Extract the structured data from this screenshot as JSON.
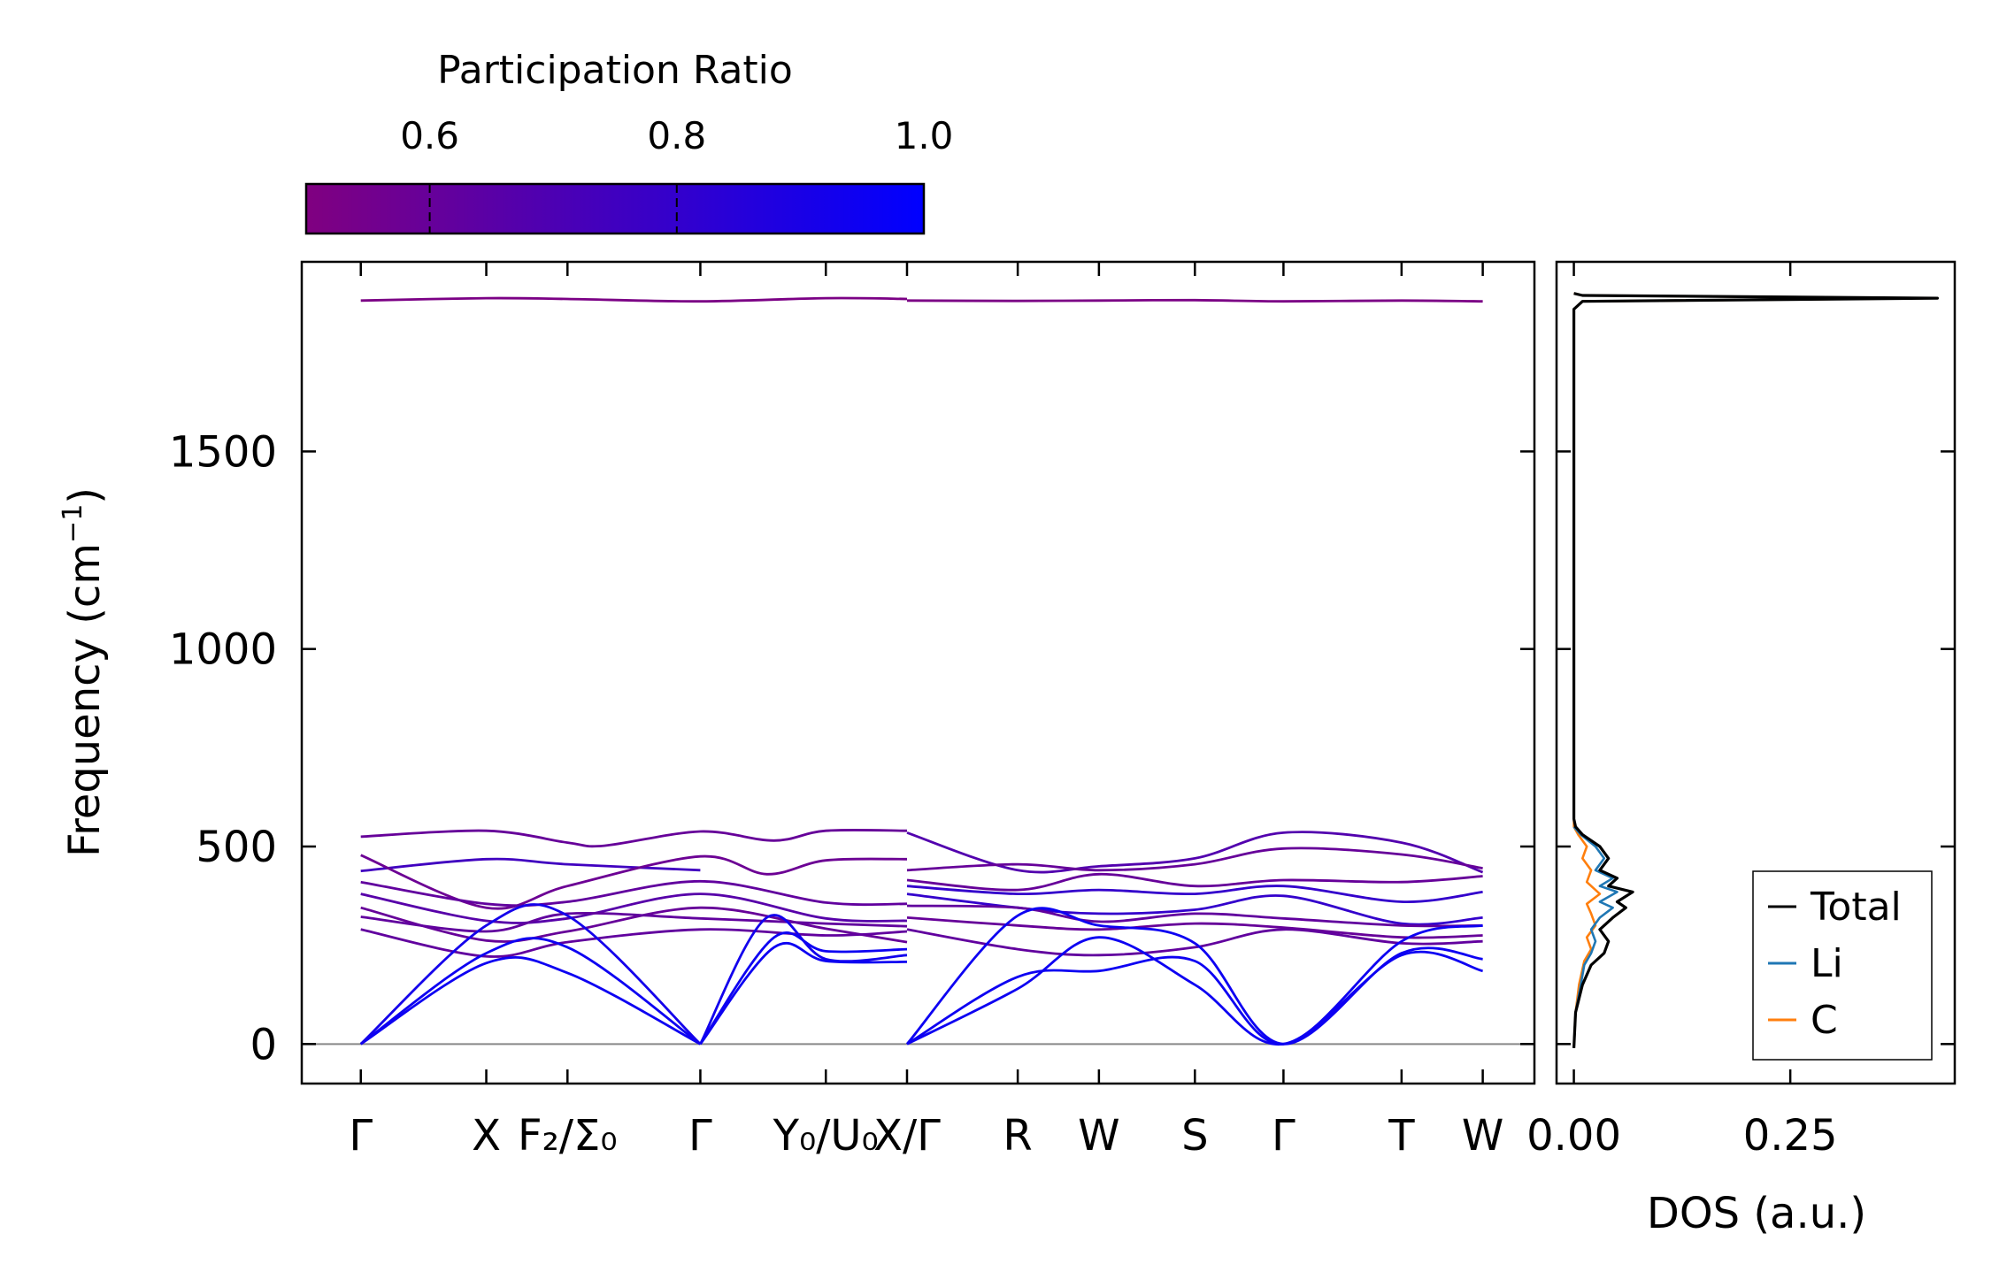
{
  "chart_data": [
    {
      "type": "line",
      "title": "",
      "xlabel": "",
      "ylabel": "Frequency (cm⁻¹)",
      "ylabel_main": "Frequency (cm",
      "ylabel_sup": "−1",
      "ylabel_close": ")",
      "ylim": [
        -100,
        1980
      ],
      "yticks": [
        0,
        500,
        1000,
        1500
      ],
      "ytick_labels": [
        "0",
        "500",
        "1000",
        "1500"
      ],
      "colorbar": {
        "label": "Participation Ratio",
        "range": [
          0.5,
          1.0
        ],
        "ticks": [
          0.6,
          0.8,
          1.0
        ],
        "tick_labels": [
          "0.6",
          "0.8",
          "1.0"
        ],
        "color_low": "#800080",
        "color_high": "#0000ff"
      },
      "kpath": {
        "ticks": [
          {
            "label": "Γ",
            "x": 0.0
          },
          {
            "label": "X",
            "x": 0.85
          },
          {
            "label": "F₂/Σ₀",
            "x": 1.4
          },
          {
            "label": "Γ",
            "x": 2.3
          },
          {
            "label": "Y₀/U₀",
            "x": 3.15
          },
          {
            "label": "X/Γ",
            "x": 3.7
          },
          {
            "label": "R",
            "x": 4.45
          },
          {
            "label": "W",
            "x": 5.0
          },
          {
            "label": "S",
            "x": 5.65
          },
          {
            "label": "Γ",
            "x": 6.25
          },
          {
            "label": "T",
            "x": 7.05
          },
          {
            "label": "W",
            "x": 7.6
          }
        ],
        "xlim": [
          -0.4,
          7.95
        ],
        "ymin_line": 0
      },
      "bands": [
        {
          "x": [
            0,
            0.85,
            1.4,
            2.3,
            3.15,
            3.7
          ],
          "y": [
            1882,
            1888,
            1886,
            1880,
            1888,
            1886
          ],
          "pr": 0.52
        },
        {
          "x": [
            3.7,
            4.45,
            5.0,
            5.65,
            6.25,
            7.05,
            7.6
          ],
          "y": [
            1882,
            1881,
            1882,
            1883,
            1880,
            1882,
            1880
          ],
          "pr": 0.52
        },
        {
          "x": [
            0,
            0.85,
            1.4,
            1.65,
            2.3,
            2.8,
            3.15,
            3.7
          ],
          "y": [
            525,
            540,
            510,
            502,
            538,
            515,
            540,
            540
          ],
          "pr": 0.6
        },
        {
          "x": [
            0,
            0.85,
            1.4,
            2.3
          ],
          "y": [
            438,
            468,
            455,
            440
          ],
          "pr": 0.75
        },
        {
          "x": [
            0,
            0.85,
            1.4,
            2.3,
            2.75,
            3.15,
            3.7
          ],
          "y": [
            478,
            345,
            400,
            475,
            430,
            465,
            468
          ],
          "pr": 0.58
        },
        {
          "x": [
            0,
            0.85,
            1.4,
            2.3,
            3.15,
            3.7
          ],
          "y": [
            410,
            355,
            360,
            412,
            358,
            355
          ],
          "pr": 0.62
        },
        {
          "x": [
            0,
            0.85,
            1.4,
            2.3,
            3.15,
            3.7
          ],
          "y": [
            380,
            312,
            318,
            380,
            318,
            312
          ],
          "pr": 0.66
        },
        {
          "x": [
            0,
            0.85,
            1.4,
            2.3,
            3.15,
            3.7
          ],
          "y": [
            345,
            262,
            285,
            345,
            292,
            258
          ],
          "pr": 0.6
        },
        {
          "x": [
            0,
            0.85,
            1.4,
            2.3,
            3.15,
            3.7
          ],
          "y": [
            322,
            285,
            330,
            318,
            305,
            298
          ],
          "pr": 0.62
        },
        {
          "x": [
            0,
            0.85,
            1.4,
            2.3,
            3.15,
            3.7
          ],
          "y": [
            290,
            222,
            258,
            290,
            275,
            285
          ],
          "pr": 0.62
        },
        {
          "x": [
            0,
            0.85,
            1.4,
            2.3
          ],
          "y": [
            0,
            205,
            180,
            0
          ],
          "pr": 0.95
        },
        {
          "x": [
            0,
            0.85,
            1.4,
            2.3
          ],
          "y": [
            0,
            230,
            245,
            0
          ],
          "pr": 0.95
        },
        {
          "x": [
            0,
            0.85,
            1.4,
            2.3
          ],
          "y": [
            0,
            300,
            325,
            0
          ],
          "pr": 0.92
        },
        {
          "x": [
            2.3,
            2.75,
            3.15,
            3.7
          ],
          "y": [
            0,
            320,
            215,
            225
          ],
          "pr": 0.93
        },
        {
          "x": [
            2.3,
            2.8,
            3.15,
            3.7
          ],
          "y": [
            0,
            245,
            210,
            208
          ],
          "pr": 0.95
        },
        {
          "x": [
            2.3,
            2.8,
            3.15,
            3.7
          ],
          "y": [
            0,
            270,
            235,
            240
          ],
          "pr": 0.95
        },
        {
          "x": [
            3.7,
            4.45,
            5.0,
            5.65,
            6.25,
            7.05,
            7.6
          ],
          "y": [
            535,
            440,
            450,
            470,
            535,
            510,
            435
          ],
          "pr": 0.68
        },
        {
          "x": [
            3.7,
            4.45,
            5.0,
            5.65,
            6.25,
            7.05,
            7.6
          ],
          "y": [
            440,
            455,
            440,
            455,
            495,
            480,
            445
          ],
          "pr": 0.6
        },
        {
          "x": [
            3.7,
            4.45,
            5.0,
            5.65,
            6.25,
            7.05,
            7.6
          ],
          "y": [
            415,
            390,
            430,
            400,
            415,
            410,
            425
          ],
          "pr": 0.6
        },
        {
          "x": [
            3.7,
            4.45,
            5.0,
            5.65,
            6.25,
            7.05,
            7.6
          ],
          "y": [
            400,
            380,
            390,
            380,
            400,
            360,
            385
          ],
          "pr": 0.8
        },
        {
          "x": [
            3.7,
            4.45,
            5.0,
            5.65,
            6.25,
            7.05,
            7.6
          ],
          "y": [
            380,
            345,
            330,
            340,
            375,
            305,
            320
          ],
          "pr": 0.8
        },
        {
          "x": [
            3.7,
            4.45,
            5.0,
            5.65,
            6.25,
            7.05,
            7.6
          ],
          "y": [
            350,
            345,
            310,
            330,
            318,
            300,
            300
          ],
          "pr": 0.62
        },
        {
          "x": [
            3.7,
            4.45,
            5.0,
            5.65,
            6.25,
            7.05,
            7.6
          ],
          "y": [
            320,
            300,
            290,
            305,
            295,
            270,
            275
          ],
          "pr": 0.6
        },
        {
          "x": [
            3.7,
            4.45,
            5.0,
            5.65,
            6.25,
            7.05,
            7.6
          ],
          "y": [
            290,
            240,
            225,
            245,
            290,
            255,
            260
          ],
          "pr": 0.62
        },
        {
          "x": [
            3.7,
            4.45,
            5.0,
            5.65,
            6.25,
            7.05,
            7.6
          ],
          "y": [
            0,
            325,
            300,
            255,
            0,
            230,
            215
          ],
          "pr": 0.95
        },
        {
          "x": [
            3.7,
            4.45,
            5.0,
            5.65,
            6.25,
            7.05,
            7.6
          ],
          "y": [
            0,
            170,
            185,
            210,
            0,
            260,
            300
          ],
          "pr": 0.95
        },
        {
          "x": [
            3.7,
            4.45,
            5.0,
            5.65,
            6.25,
            7.05,
            7.6
          ],
          "y": [
            0,
            140,
            270,
            150,
            0,
            225,
            185
          ],
          "pr": 0.95
        }
      ]
    },
    {
      "type": "line",
      "title": "",
      "xlabel": "DOS (a.u.)",
      "ylabel": "",
      "xlim": [
        -0.02,
        0.44
      ],
      "xticks": [
        0.0,
        0.25
      ],
      "xtick_labels": [
        "0.00",
        "0.25"
      ],
      "ylim": [
        -100,
        1980
      ],
      "legend": {
        "position": "bottom-right",
        "entries": [
          "Total",
          "Li",
          "C"
        ]
      },
      "series": [
        {
          "name": "Total",
          "color": "#000000",
          "points": [
            [
              0,
              -10
            ],
            [
              0.002,
              80
            ],
            [
              0.01,
              150
            ],
            [
              0.02,
              200
            ],
            [
              0.035,
              230
            ],
            [
              0.04,
              260
            ],
            [
              0.03,
              290
            ],
            [
              0.045,
              320
            ],
            [
              0.06,
              345
            ],
            [
              0.05,
              360
            ],
            [
              0.068,
              385
            ],
            [
              0.04,
              400
            ],
            [
              0.05,
              420
            ],
            [
              0.03,
              440
            ],
            [
              0.04,
              470
            ],
            [
              0.03,
              500
            ],
            [
              0.01,
              530
            ],
            [
              0.002,
              550
            ],
            [
              0,
              570
            ],
            [
              0,
              1860
            ],
            [
              0.01,
              1880
            ],
            [
              0.42,
              1888
            ],
            [
              0.01,
              1895
            ],
            [
              0,
              1900
            ]
          ]
        },
        {
          "name": "Li",
          "color": "#1f77b4",
          "points": [
            [
              0,
              -10
            ],
            [
              0.002,
              80
            ],
            [
              0.008,
              150
            ],
            [
              0.012,
              200
            ],
            [
              0.02,
              230
            ],
            [
              0.025,
              260
            ],
            [
              0.02,
              290
            ],
            [
              0.03,
              320
            ],
            [
              0.045,
              345
            ],
            [
              0.03,
              360
            ],
            [
              0.05,
              385
            ],
            [
              0.03,
              400
            ],
            [
              0.045,
              420
            ],
            [
              0.025,
              440
            ],
            [
              0.035,
              470
            ],
            [
              0.025,
              500
            ],
            [
              0.008,
              530
            ],
            [
              0,
              550
            ]
          ]
        },
        {
          "name": "C",
          "color": "#ff7f0e",
          "points": [
            [
              0,
              -10
            ],
            [
              0.002,
              80
            ],
            [
              0.006,
              150
            ],
            [
              0.012,
              210
            ],
            [
              0.02,
              240
            ],
            [
              0.015,
              270
            ],
            [
              0.025,
              300
            ],
            [
              0.02,
              330
            ],
            [
              0.015,
              355
            ],
            [
              0.03,
              380
            ],
            [
              0.015,
              410
            ],
            [
              0.02,
              440
            ],
            [
              0.01,
              470
            ],
            [
              0.015,
              500
            ],
            [
              0.005,
              530
            ],
            [
              0,
              550
            ],
            [
              0,
              1860
            ],
            [
              0.01,
              1880
            ],
            [
              0.42,
              1888
            ],
            [
              0.01,
              1895
            ],
            [
              0,
              1900
            ]
          ]
        }
      ]
    }
  ]
}
